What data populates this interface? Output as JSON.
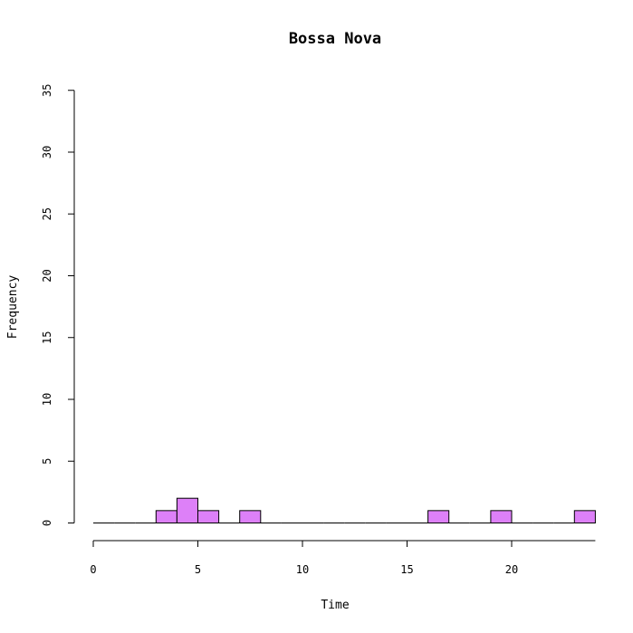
{
  "chart_data": {
    "type": "bar",
    "title": "Bossa Nova",
    "xlabel": "Time",
    "ylabel": "Frequency",
    "xlim": [
      0,
      24
    ],
    "ylim": [
      0,
      35
    ],
    "x_ticks": [
      0,
      5,
      10,
      15,
      20
    ],
    "y_ticks": [
      0,
      5,
      10,
      15,
      20,
      25,
      30,
      35
    ],
    "bin_width": 1,
    "bins": [
      {
        "start": 0,
        "count": 0
      },
      {
        "start": 1,
        "count": 0
      },
      {
        "start": 2,
        "count": 0
      },
      {
        "start": 3,
        "count": 1
      },
      {
        "start": 4,
        "count": 2
      },
      {
        "start": 5,
        "count": 1
      },
      {
        "start": 6,
        "count": 0
      },
      {
        "start": 7,
        "count": 1
      },
      {
        "start": 8,
        "count": 0
      },
      {
        "start": 9,
        "count": 0
      },
      {
        "start": 10,
        "count": 0
      },
      {
        "start": 11,
        "count": 0
      },
      {
        "start": 12,
        "count": 0
      },
      {
        "start": 13,
        "count": 0
      },
      {
        "start": 14,
        "count": 0
      },
      {
        "start": 15,
        "count": 0
      },
      {
        "start": 16,
        "count": 1
      },
      {
        "start": 17,
        "count": 0
      },
      {
        "start": 18,
        "count": 0
      },
      {
        "start": 19,
        "count": 1
      },
      {
        "start": 20,
        "count": 0
      },
      {
        "start": 21,
        "count": 0
      },
      {
        "start": 22,
        "count": 0
      },
      {
        "start": 23,
        "count": 1
      }
    ],
    "bar_color": "#dd80f8",
    "grid": false,
    "legend": "none"
  }
}
